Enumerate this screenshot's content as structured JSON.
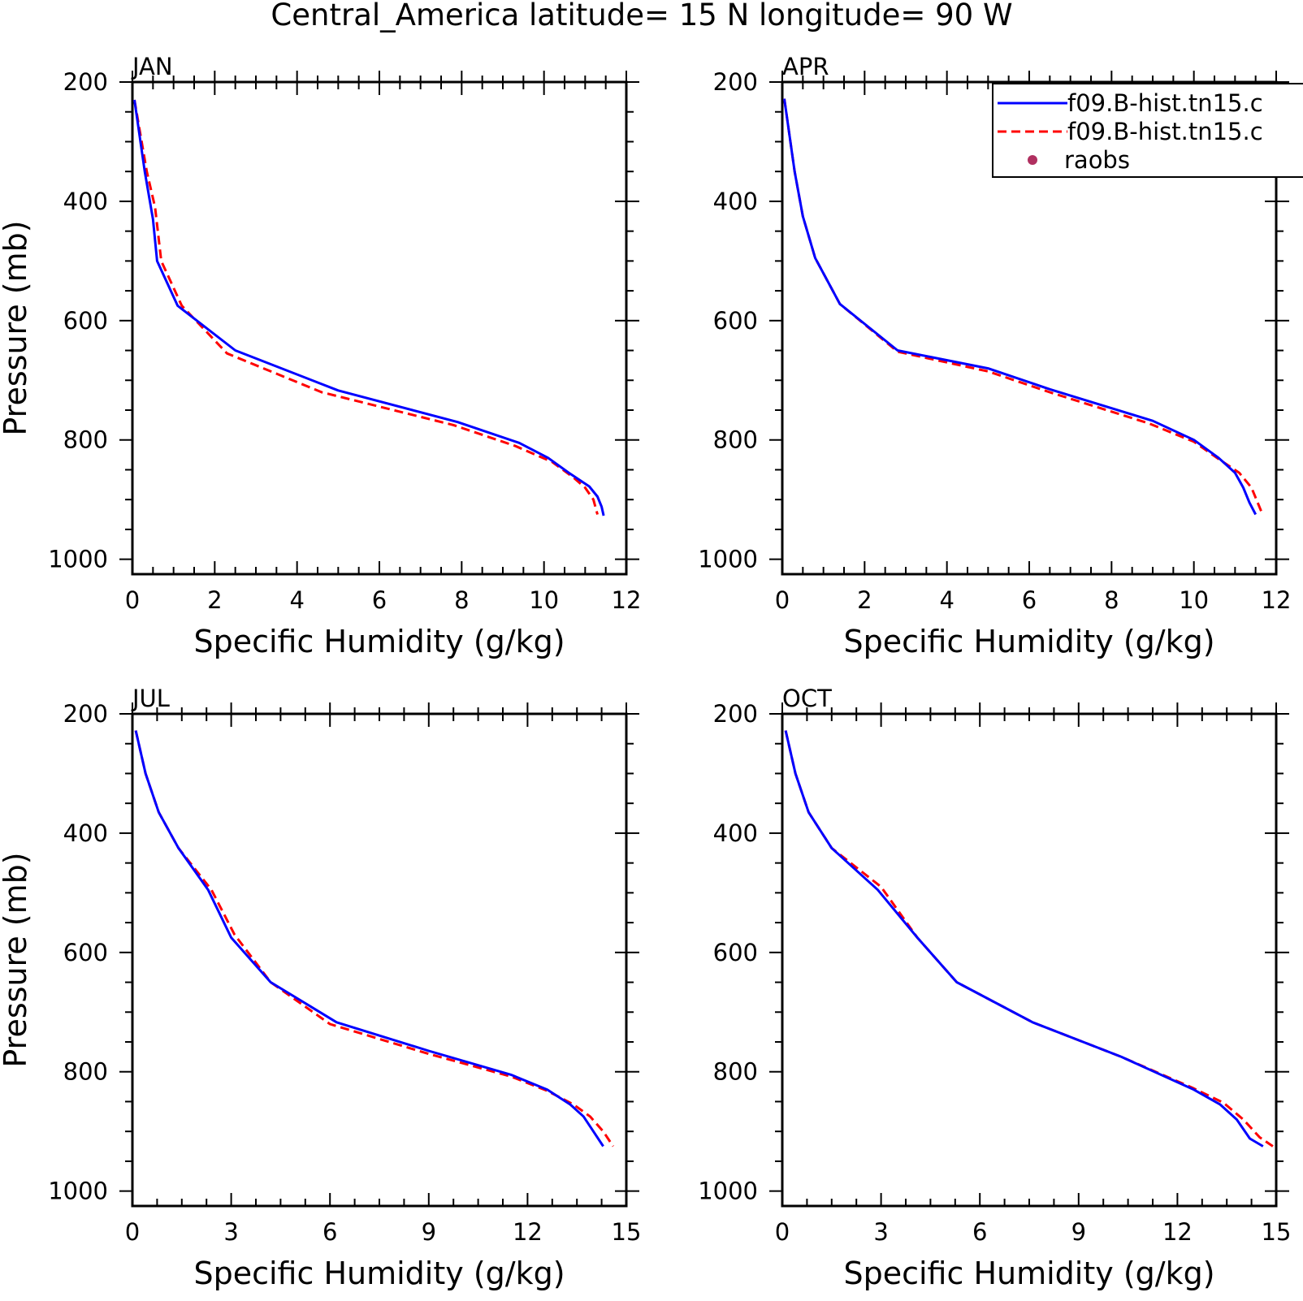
{
  "figure": {
    "title": "Central_America  latitude= 15 N longitude= 90 W"
  },
  "legend": {
    "placement": "top-right",
    "entries": [
      {
        "label": "f09.B-hist.tn15.c",
        "style": "solid",
        "color": "#0000ff",
        "marker": "line"
      },
      {
        "label": "f09.B-hist.tn15.c",
        "style": "dashed",
        "color": "#ff0000",
        "marker": "line"
      },
      {
        "label": "raobs",
        "style": "point",
        "color": "#b03060",
        "marker": "dot"
      }
    ]
  },
  "chart_data": [
    {
      "type": "line",
      "panel": "JAN",
      "xlabel": "Specific Humidity (g/kg)",
      "ylabel": "Pressure (mb)",
      "xlim": [
        0,
        12
      ],
      "ylim": [
        1025,
        200
      ],
      "y_inverted": true,
      "xticks": [
        0,
        2,
        4,
        6,
        8,
        10,
        12
      ],
      "yticks": [
        200,
        400,
        600,
        800,
        1000
      ],
      "series": [
        {
          "name": "f09.B-hist.tn15.c",
          "color": "#0000ff",
          "style": "solid",
          "points": [
            [
              0.05,
              230
            ],
            [
              0.3,
              350
            ],
            [
              0.5,
              430
            ],
            [
              0.6,
              500
            ],
            [
              1.1,
              575
            ],
            [
              2.5,
              650
            ],
            [
              5.0,
              717
            ],
            [
              7.9,
              770
            ],
            [
              9.4,
              805
            ],
            [
              10.1,
              830
            ],
            [
              10.6,
              855
            ],
            [
              11.1,
              878
            ],
            [
              11.3,
              895
            ],
            [
              11.4,
              912
            ],
            [
              11.45,
              927
            ]
          ]
        },
        {
          "name": "f09.B-hist.tn15.c",
          "color": "#ff0000",
          "style": "dashed",
          "points": [
            [
              0.05,
              230
            ],
            [
              0.35,
              350
            ],
            [
              0.55,
              410
            ],
            [
              0.7,
              500
            ],
            [
              1.2,
              575
            ],
            [
              2.3,
              655
            ],
            [
              4.6,
              720
            ],
            [
              7.8,
              775
            ],
            [
              9.3,
              810
            ],
            [
              10.2,
              837
            ],
            [
              10.7,
              862
            ],
            [
              11.0,
              880
            ],
            [
              11.2,
              900
            ],
            [
              11.3,
              925
            ]
          ]
        }
      ]
    },
    {
      "type": "line",
      "panel": "APR",
      "xlabel": "Specific Humidity (g/kg)",
      "ylabel": "",
      "xlim": [
        0,
        12
      ],
      "ylim": [
        1025,
        200
      ],
      "y_inverted": true,
      "xticks": [
        0,
        2,
        4,
        6,
        8,
        10,
        12
      ],
      "yticks": [
        200,
        400,
        600,
        800,
        1000
      ],
      "series": [
        {
          "name": "f09.B-hist.tn15.c",
          "color": "#0000ff",
          "style": "solid",
          "points": [
            [
              0.05,
              228
            ],
            [
              0.3,
              350
            ],
            [
              0.5,
              425
            ],
            [
              0.8,
              495
            ],
            [
              1.4,
              572
            ],
            [
              2.8,
              650
            ],
            [
              5.0,
              680
            ],
            [
              6.5,
              715
            ],
            [
              9.0,
              768
            ],
            [
              10.0,
              800
            ],
            [
              10.6,
              830
            ],
            [
              11.0,
              855
            ],
            [
              11.2,
              880
            ],
            [
              11.35,
              905
            ],
            [
              11.5,
              925
            ]
          ]
        },
        {
          "name": "f09.B-hist.tn15.c",
          "color": "#ff0000",
          "style": "dashed",
          "points": [
            [
              0.05,
              228
            ],
            [
              0.3,
              350
            ],
            [
              0.5,
              425
            ],
            [
              0.8,
              495
            ],
            [
              1.4,
              572
            ],
            [
              2.8,
              652
            ],
            [
              5.0,
              685
            ],
            [
              6.5,
              720
            ],
            [
              8.9,
              772
            ],
            [
              10.0,
              803
            ],
            [
              10.6,
              832
            ],
            [
              11.1,
              855
            ],
            [
              11.4,
              880
            ],
            [
              11.55,
              905
            ],
            [
              11.65,
              922
            ]
          ]
        }
      ]
    },
    {
      "type": "line",
      "panel": "JUL",
      "xlabel": "Specific Humidity (g/kg)",
      "ylabel": "Pressure (mb)",
      "xlim": [
        0,
        15
      ],
      "ylim": [
        1025,
        200
      ],
      "y_inverted": true,
      "xticks": [
        0,
        3,
        6,
        9,
        12,
        15
      ],
      "yticks": [
        200,
        400,
        600,
        800,
        1000
      ],
      "series": [
        {
          "name": "f09.B-hist.tn15.c",
          "color": "#0000ff",
          "style": "solid",
          "points": [
            [
              0.1,
              228
            ],
            [
              0.4,
              300
            ],
            [
              0.8,
              365
            ],
            [
              1.4,
              425
            ],
            [
              2.3,
              495
            ],
            [
              3.0,
              575
            ],
            [
              4.2,
              650
            ],
            [
              6.2,
              717
            ],
            [
              9.0,
              765
            ],
            [
              11.5,
              805
            ],
            [
              12.6,
              830
            ],
            [
              13.3,
              855
            ],
            [
              13.7,
              875
            ],
            [
              14.0,
              900
            ],
            [
              14.3,
              925
            ]
          ]
        },
        {
          "name": "f09.B-hist.tn15.c",
          "color": "#ff0000",
          "style": "dashed",
          "points": [
            [
              0.1,
              228
            ],
            [
              0.4,
              300
            ],
            [
              0.8,
              365
            ],
            [
              1.4,
              425
            ],
            [
              2.4,
              495
            ],
            [
              3.1,
              570
            ],
            [
              4.2,
              650
            ],
            [
              6.0,
              720
            ],
            [
              9.0,
              770
            ],
            [
              11.5,
              808
            ],
            [
              12.6,
              832
            ],
            [
              13.4,
              855
            ],
            [
              13.9,
              875
            ],
            [
              14.3,
              900
            ],
            [
              14.6,
              925
            ]
          ]
        }
      ]
    },
    {
      "type": "line",
      "panel": "OCT",
      "xlabel": "Specific Humidity (g/kg)",
      "ylabel": "",
      "xlim": [
        0,
        15
      ],
      "ylim": [
        1025,
        200
      ],
      "y_inverted": true,
      "xticks": [
        0,
        3,
        6,
        9,
        12,
        15
      ],
      "yticks": [
        200,
        400,
        600,
        800,
        1000
      ],
      "series": [
        {
          "name": "f09.B-hist.tn15.c",
          "color": "#0000ff",
          "style": "solid",
          "points": [
            [
              0.1,
              228
            ],
            [
              0.4,
              300
            ],
            [
              0.8,
              365
            ],
            [
              1.5,
              425
            ],
            [
              2.9,
              495
            ],
            [
              4.1,
              575
            ],
            [
              5.3,
              650
            ],
            [
              7.6,
              717
            ],
            [
              10.3,
              775
            ],
            [
              12.5,
              830
            ],
            [
              13.3,
              855
            ],
            [
              13.8,
              880
            ],
            [
              14.2,
              912
            ],
            [
              14.6,
              925
            ]
          ]
        },
        {
          "name": "f09.B-hist.tn15.c",
          "color": "#ff0000",
          "style": "dashed",
          "points": [
            [
              0.1,
              228
            ],
            [
              0.4,
              300
            ],
            [
              0.8,
              365
            ],
            [
              1.5,
              425
            ],
            [
              3.0,
              490
            ],
            [
              4.1,
              575
            ],
            [
              5.3,
              650
            ],
            [
              7.6,
              717
            ],
            [
              10.3,
              775
            ],
            [
              12.5,
              828
            ],
            [
              13.4,
              852
            ],
            [
              14.0,
              880
            ],
            [
              14.5,
              910
            ],
            [
              14.9,
              925
            ]
          ]
        }
      ]
    }
  ]
}
